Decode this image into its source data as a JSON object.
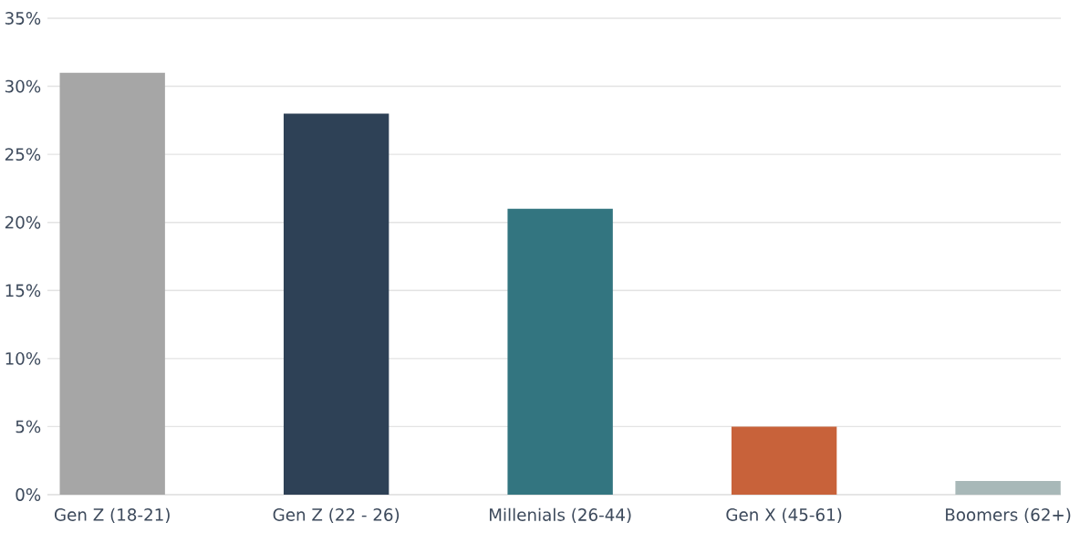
{
  "chart_data": {
    "type": "bar",
    "categories": [
      "Gen Z (18-21)",
      "Gen Z (22 - 26)",
      "Millenials (26-44)",
      "Gen X (45-61)",
      "Boomers (62+)"
    ],
    "values": [
      31,
      28,
      21,
      5,
      1
    ],
    "colors": [
      "#a6a6a6",
      "#2e4156",
      "#337580",
      "#c8623a",
      "#a8b8b8"
    ],
    "ylim": [
      0,
      35
    ],
    "yticks": [
      {
        "value": 0,
        "label": "0%"
      },
      {
        "value": 5,
        "label": "5%"
      },
      {
        "value": 10,
        "label": "10%"
      },
      {
        "value": 15,
        "label": "15%"
      },
      {
        "value": 20,
        "label": "20%"
      },
      {
        "value": 25,
        "label": "25%"
      },
      {
        "value": 30,
        "label": "30%"
      },
      {
        "value": 35,
        "label": "35%"
      }
    ],
    "grid": "y"
  }
}
